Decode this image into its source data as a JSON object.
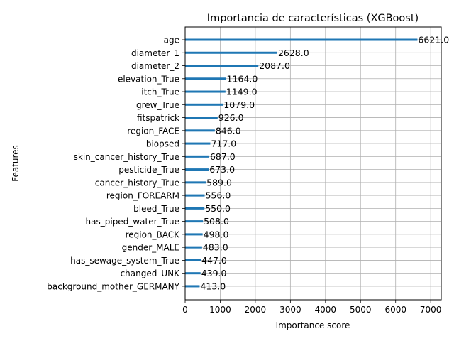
{
  "chart_data": {
    "type": "bar",
    "orientation": "horizontal",
    "title": "Importancia de características (XGBoost)",
    "xlabel": "Importance score",
    "ylabel": "Features",
    "xlim": [
      0,
      7300
    ],
    "xticks": [
      0,
      1000,
      2000,
      3000,
      4000,
      5000,
      6000,
      7000
    ],
    "grid": true,
    "categories": [
      "age",
      "diameter_1",
      "diameter_2",
      "elevation_True",
      "itch_True",
      "grew_True",
      "fitspatrick",
      "region_FACE",
      "biopsed",
      "skin_cancer_history_True",
      "pesticide_True",
      "cancer_history_True",
      "region_FOREARM",
      "bleed_True",
      "has_piped_water_True",
      "region_BACK",
      "gender_MALE",
      "has_sewage_system_True",
      "changed_UNK",
      "background_mother_GERMANY"
    ],
    "values": [
      6621,
      2628,
      2087,
      1164,
      1149,
      1079,
      926,
      846,
      717,
      687,
      673,
      589,
      556,
      550,
      508,
      498,
      483,
      447,
      439,
      413
    ],
    "value_labels": [
      "6621.0",
      "2628.0",
      "2087.0",
      "1164.0",
      "1149.0",
      "1079.0",
      "926.0",
      "846.0",
      "717.0",
      "687.0",
      "673.0",
      "589.0",
      "556.0",
      "550.0",
      "508.0",
      "498.0",
      "483.0",
      "447.0",
      "439.0",
      "413.0"
    ],
    "bar_color": "#1f77b4",
    "grid_color": "#b0b0b0"
  }
}
